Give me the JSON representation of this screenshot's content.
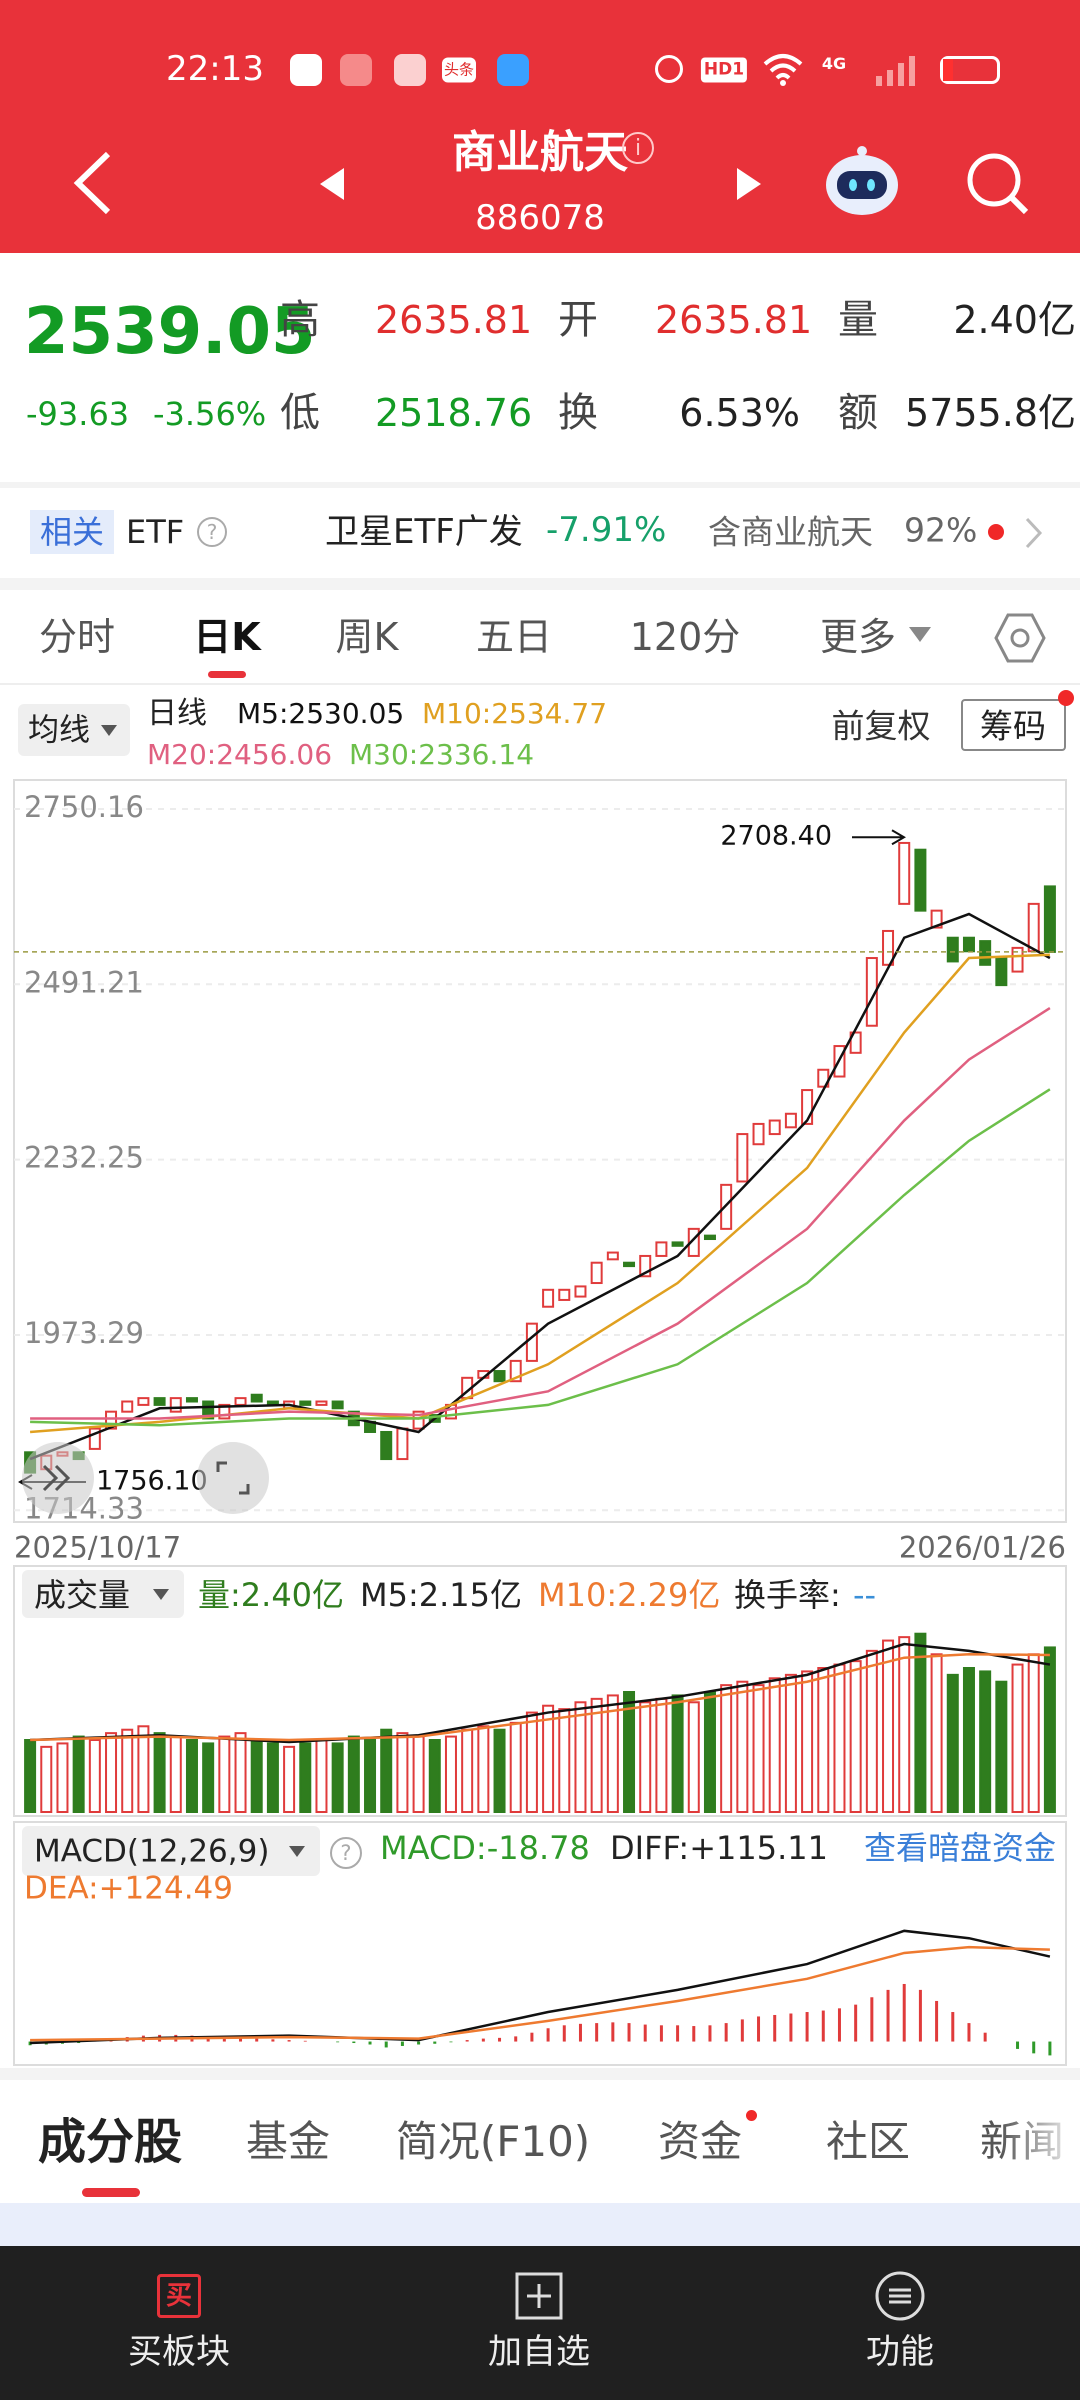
{
  "status_bar": {
    "time": "22:13",
    "badge": "头条",
    "hd": "HD1",
    "network": "4G"
  },
  "header": {
    "title": "商业航天",
    "code": "886078"
  },
  "quote": {
    "price": "2539.05",
    "change": "-93.63",
    "change_pct": "-3.56%",
    "high_label": "高",
    "high": "2635.81",
    "open_label": "开",
    "open": "2635.81",
    "volume_label": "量",
    "volume": "2.40亿",
    "low_label": "低",
    "low": "2518.76",
    "turnover_label": "换",
    "turnover": "6.53%",
    "amount_label": "额",
    "amount": "5755.8亿"
  },
  "etf": {
    "tag": "相关",
    "label": "ETF",
    "name": "卫星ETF广发",
    "change": "-7.91%",
    "holding": "含商业航天",
    "holding_pct": "92%"
  },
  "tabs": [
    "分时",
    "日K",
    "周K",
    "五日",
    "120分",
    "更多"
  ],
  "indicator": {
    "ma_button": "均线",
    "period": "日线",
    "m5": "M5:2530.05",
    "m10": "M10:2534.77",
    "m20": "M20:2456.06",
    "m30": "M30:2336.14",
    "adjust": "前复权",
    "chips": "筹码"
  },
  "kline": {
    "type": "candlestick",
    "open": [
      1800,
      1775,
      1795,
      1800,
      1805,
      1835,
      1860,
      1870,
      1880,
      1860,
      1880,
      1875,
      1850,
      1870,
      1885,
      1875,
      1865,
      1875,
      1870,
      1875,
      1860,
      1845,
      1830,
      1790,
      1835,
      1855,
      1850,
      1880,
      1910,
      1920,
      1905,
      1935,
      2015,
      2025,
      2030,
      2050,
      2085,
      2080,
      2060,
      2090,
      2110,
      2090,
      2120,
      2130,
      2200,
      2255,
      2270,
      2280,
      2285,
      2340,
      2355,
      2390,
      2430,
      2520,
      2610,
      2690,
      2575,
      2560,
      2560,
      2555,
      2530,
      2510,
      2540,
      2635.81
    ],
    "close": [
      1770,
      1795,
      1800,
      1790,
      1835,
      1860,
      1875,
      1880,
      1870,
      1880,
      1875,
      1850,
      1870,
      1880,
      1875,
      1870,
      1875,
      1870,
      1875,
      1865,
      1840,
      1830,
      1790,
      1835,
      1860,
      1845,
      1870,
      1910,
      1920,
      1905,
      1935,
      1990,
      2040,
      2040,
      2045,
      2080,
      2095,
      2075,
      2090,
      2110,
      2105,
      2130,
      2115,
      2195,
      2270,
      2285,
      2290,
      2300,
      2335,
      2365,
      2400,
      2420,
      2530,
      2570,
      2700,
      2600,
      2600,
      2525,
      2540,
      2520,
      2490,
      2545,
      2610,
      2539.05
    ],
    "ylim": [
      1700,
      2790
    ],
    "yticks": [
      2750.16,
      2491.21,
      2232.25,
      1973.29,
      1714.33
    ],
    "max_label": {
      "value": 2708.4,
      "label": "2708.40"
    },
    "min_label": {
      "value": 1756.1,
      "label": "1756.10"
    },
    "ma_x": [
      0,
      8,
      16,
      24,
      32,
      40,
      48,
      54,
      58,
      63
    ],
    "ma_lines": [
      {
        "color": "#111111",
        "values": [
          1790,
          1865,
          1870,
          1830,
          1990,
          2090,
          2290,
          2560,
          2595,
          2530.05
        ]
      },
      {
        "color": "#e0a020",
        "values": [
          1830,
          1845,
          1865,
          1850,
          1930,
          2050,
          2220,
          2420,
          2530,
          2534.77
        ]
      },
      {
        "color": "#e06080",
        "values": [
          1850,
          1850,
          1860,
          1855,
          1890,
          1990,
          2130,
          2290,
          2380,
          2456.06
        ]
      },
      {
        "color": "#6cbf4a",
        "values": [
          1845,
          1840,
          1850,
          1850,
          1870,
          1930,
          2050,
          2180,
          2260,
          2336.14
        ]
      }
    ],
    "start_date": "2025/10/17",
    "end_date": "2026/01/26"
  },
  "volume": {
    "title": "成交量",
    "vol": "量:2.40亿",
    "m5": "M5:2.15亿",
    "m10": "M10:2.29亿",
    "turnover": "换手率:",
    "turnover_value": "--",
    "values": [
      1.05,
      0.95,
      1.0,
      1.1,
      1.05,
      1.15,
      1.2,
      1.25,
      1.15,
      1.1,
      1.05,
      1.0,
      1.1,
      1.15,
      1.05,
      1.0,
      0.95,
      1.0,
      1.05,
      1.0,
      1.1,
      1.05,
      1.2,
      1.15,
      1.1,
      1.05,
      1.1,
      1.2,
      1.25,
      1.2,
      1.3,
      1.45,
      1.55,
      1.5,
      1.6,
      1.65,
      1.7,
      1.75,
      1.6,
      1.65,
      1.7,
      1.6,
      1.75,
      1.85,
      1.9,
      1.85,
      1.95,
      2.0,
      2.05,
      2.1,
      2.15,
      2.2,
      2.35,
      2.5,
      2.55,
      2.6,
      2.3,
      2.0,
      2.1,
      2.05,
      1.9,
      2.15,
      2.3,
      2.4
    ],
    "ylim": [
      0,
      2.8
    ],
    "ma5": [
      1.05,
      1.12,
      1.02,
      1.12,
      1.45,
      1.68,
      2.0,
      2.45,
      2.35,
      2.15
    ],
    "ma10": [
      1.05,
      1.1,
      1.05,
      1.1,
      1.35,
      1.6,
      1.9,
      2.25,
      2.3,
      2.29
    ]
  },
  "macd": {
    "title": "MACD(12,26,9)",
    "macd": "MACD:-18.78",
    "diff": "DIFF:+115.11",
    "link": "查看暗盘资金",
    "dea": "DEA:+124.49",
    "hist": [
      -5,
      -4,
      -3,
      -2,
      2,
      4,
      6,
      8,
      9,
      9,
      8,
      7,
      6,
      5,
      4,
      3,
      2,
      1,
      0,
      -1,
      -2,
      -4,
      -8,
      -6,
      -4,
      -3,
      -1,
      2,
      4,
      5,
      7,
      12,
      18,
      22,
      24,
      25,
      26,
      25,
      23,
      22,
      22,
      21,
      22,
      25,
      30,
      34,
      36,
      38,
      40,
      42,
      45,
      50,
      60,
      70,
      78,
      70,
      55,
      40,
      25,
      12,
      0,
      -10,
      -16,
      -18.78
    ],
    "ylim": [
      -25,
      185
    ],
    "diff_values": [
      -2,
      5,
      8,
      2,
      40,
      70,
      105,
      150,
      140,
      115.11
    ],
    "dea_values": [
      2,
      4,
      6,
      4,
      28,
      55,
      85,
      120,
      128,
      124.49
    ]
  },
  "bottom_tabs": [
    "成分股",
    "基金",
    "简况(F10)",
    "资金",
    "社区",
    "新闻"
  ],
  "actions": {
    "buy_icon": "买",
    "buy": "买板块",
    "watch": "加自选",
    "func": "功能"
  }
}
